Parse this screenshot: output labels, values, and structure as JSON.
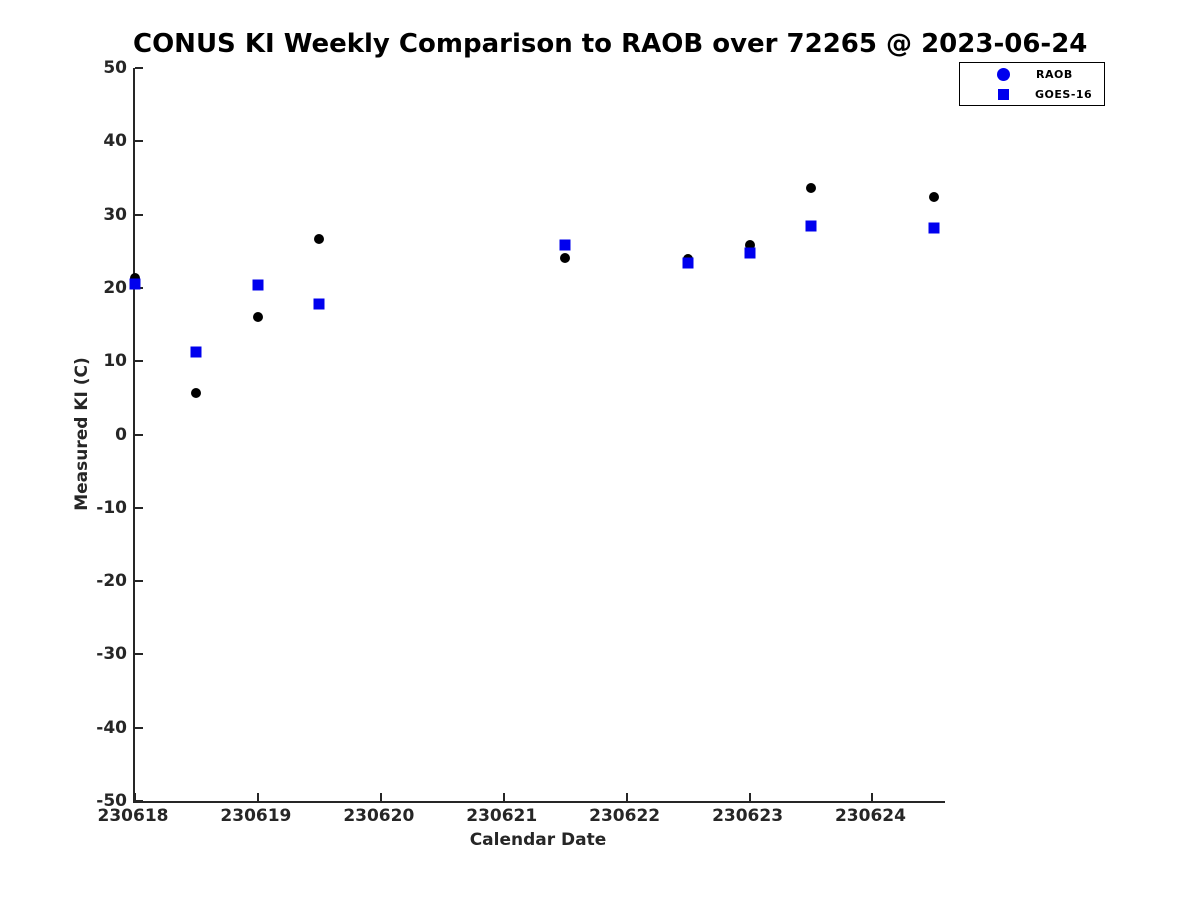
{
  "chart_data": {
    "type": "scatter",
    "title": "CONUS KI Weekly Comparison to RAOB over 72265 @ 2023-06-24",
    "xlabel": "Calendar Date",
    "ylabel": "Measured KI (C)",
    "xlim": [
      230618,
      230624.59
    ],
    "ylim": [
      -50,
      50
    ],
    "x_ticks": [
      230618,
      230619,
      230620,
      230621,
      230622,
      230623,
      230624
    ],
    "y_ticks": [
      -50,
      -40,
      -30,
      -20,
      -10,
      0,
      10,
      20,
      30,
      40,
      50
    ],
    "grid": false,
    "legend_position": "top-right",
    "axis_color": "#262626",
    "series": [
      {
        "name": "RAOB",
        "marker": "circle",
        "color": "#000000",
        "legend_marker_color": "#0000ee",
        "points": [
          [
            230618.0,
            21.4
          ],
          [
            230618.5,
            5.7
          ],
          [
            230619.0,
            16.0
          ],
          [
            230619.5,
            26.7
          ],
          [
            230621.5,
            24.1
          ],
          [
            230622.5,
            23.9
          ],
          [
            230623.0,
            25.9
          ],
          [
            230623.5,
            33.6
          ],
          [
            230624.5,
            32.4
          ]
        ]
      },
      {
        "name": "GOES-16",
        "marker": "square",
        "color": "#0000ee",
        "legend_marker_color": "#0000ee",
        "points": [
          [
            230618.0,
            20.5
          ],
          [
            230618.5,
            11.2
          ],
          [
            230619.0,
            20.4
          ],
          [
            230619.5,
            17.8
          ],
          [
            230621.5,
            25.9
          ],
          [
            230622.5,
            23.4
          ],
          [
            230623.0,
            24.8
          ],
          [
            230623.5,
            28.4
          ],
          [
            230624.5,
            28.2
          ]
        ]
      }
    ]
  }
}
